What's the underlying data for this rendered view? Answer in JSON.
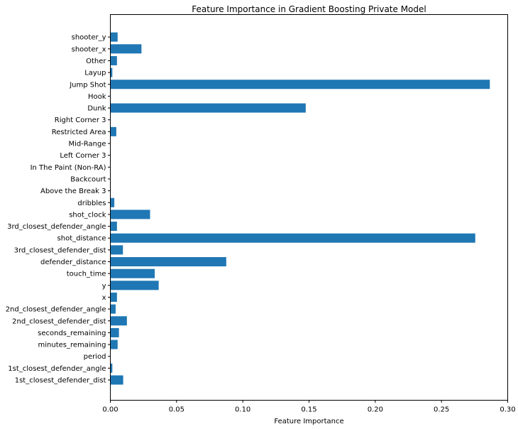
{
  "chart_data": {
    "type": "bar",
    "orientation": "horizontal",
    "title": "Feature Importance in Gradient Boosting Private Model",
    "xlabel": "Feature Importance",
    "ylabel": "",
    "xlim": [
      0,
      0.3
    ],
    "x_ticks": [
      "0.00",
      "0.05",
      "0.10",
      "0.15",
      "0.20",
      "0.25",
      "0.30"
    ],
    "x_tick_values": [
      0,
      0.05,
      0.1,
      0.15,
      0.2,
      0.25,
      0.3
    ],
    "grid": false,
    "bar_color": "#1f77b4",
    "categories": [
      "1st_closest_defender_dist",
      "1st_closest_defender_angle",
      "period",
      "minutes_remaining",
      "seconds_remaining",
      "2nd_closest_defender_dist",
      "2nd_closest_defender_angle",
      "x",
      "y",
      "touch_time",
      "defender_distance",
      "3rd_closest_defender_dist",
      "shot_distance",
      "3rd_closest_defender_angle",
      "shot_clock",
      "dribbles",
      "Above the Break 3",
      "Backcourt",
      "In The Paint (Non-RA)",
      "Left Corner 3",
      "Mid-Range",
      "Restricted Area",
      "Right Corner 3",
      "Dunk",
      "Hook",
      "Jump Shot",
      "Layup",
      "Other",
      "shooter_x",
      "shooter_y"
    ],
    "values": [
      0.0097,
      0.0015,
      0.0,
      0.0055,
      0.0065,
      0.0125,
      0.004,
      0.005,
      0.0365,
      0.0335,
      0.0875,
      0.0095,
      0.2755,
      0.005,
      0.03,
      0.003,
      0.0,
      0.0,
      0.0,
      0.0,
      0.0,
      0.0045,
      0.0,
      0.1475,
      0.0,
      0.2865,
      0.0015,
      0.005,
      0.0235,
      0.0055
    ]
  }
}
